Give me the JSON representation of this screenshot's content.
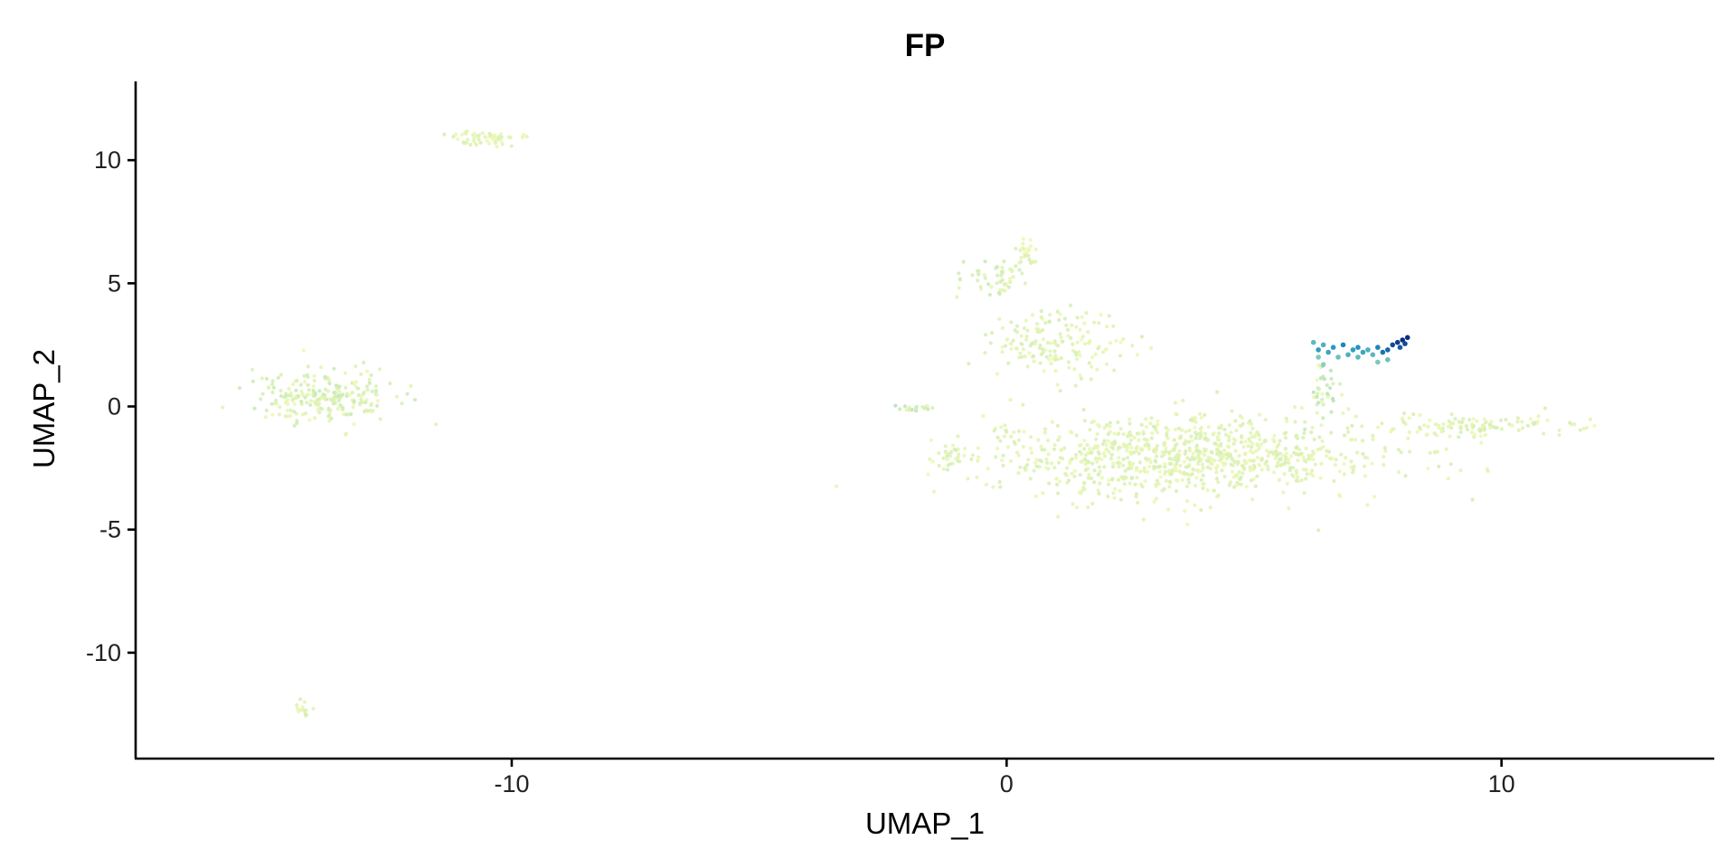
{
  "chart_data": {
    "type": "scatter",
    "title": "FP",
    "xlabel": "UMAP_1",
    "ylabel": "UMAP_2",
    "xlim": [
      -17.6,
      14.3
    ],
    "ylim": [
      -14.3,
      13.2
    ],
    "x_ticks": [
      -10,
      0,
      10
    ],
    "x_tick_labels": [
      "-10",
      "0",
      "10"
    ],
    "y_ticks": [
      -10,
      -5,
      0,
      5,
      10
    ],
    "y_tick_labels": [
      "-10",
      "-5",
      "0",
      "5",
      "10"
    ],
    "grid": false,
    "legend": "none",
    "color_scale": {
      "low": "#edf8b1",
      "mid_low": "#7fcdbb",
      "mid_high": "#1d91c0",
      "high": "#0c2c84",
      "range": [
        0,
        1
      ]
    },
    "clusters": [
      {
        "center": [
          3.5,
          -2.0
        ],
        "spread": [
          3.8,
          1.5
        ],
        "count": 900,
        "expression": 0.02
      },
      {
        "center": [
          1.0,
          2.5
        ],
        "spread": [
          1.2,
          1.2
        ],
        "count": 160,
        "expression": 0.02
      },
      {
        "center": [
          -0.3,
          5.2
        ],
        "spread": [
          0.6,
          0.8
        ],
        "count": 50,
        "expression": 0.03
      },
      {
        "center": [
          0.4,
          6.2
        ],
        "spread": [
          0.2,
          0.6
        ],
        "count": 25,
        "expression": 0.02
      },
      {
        "center": [
          -1.0,
          -2.0
        ],
        "spread": [
          0.4,
          0.4
        ],
        "count": 25,
        "expression": 0.02
      },
      {
        "center": [
          9.5,
          -0.8
        ],
        "spread": [
          1.8,
          0.4
        ],
        "count": 110,
        "expression": 0.02
      },
      {
        "center": [
          -13.8,
          0.4
        ],
        "spread": [
          1.3,
          0.9
        ],
        "count": 230,
        "expression": 0.03
      },
      {
        "center": [
          -10.5,
          10.9
        ],
        "spread": [
          0.7,
          0.3
        ],
        "count": 55,
        "expression": 0.02
      },
      {
        "center": [
          -14.2,
          -12.3
        ],
        "spread": [
          0.2,
          0.3
        ],
        "count": 14,
        "expression": 0.02
      },
      {
        "center": [
          -1.8,
          -0.1
        ],
        "spread": [
          0.6,
          0.15
        ],
        "count": 18,
        "expression": 0.05
      },
      {
        "center": [
          6.4,
          0.6
        ],
        "spread": [
          0.3,
          1.0
        ],
        "count": 35,
        "expression": 0.05
      }
    ],
    "highlight_points": [
      [
        6.2,
        2.6,
        0.45
      ],
      [
        6.3,
        2.3,
        0.6
      ],
      [
        6.4,
        2.5,
        0.5
      ],
      [
        6.5,
        2.2,
        0.55
      ],
      [
        6.6,
        2.4,
        0.62
      ],
      [
        6.7,
        2.0,
        0.4
      ],
      [
        6.8,
        2.5,
        0.7
      ],
      [
        6.9,
        2.1,
        0.5
      ],
      [
        7.0,
        2.3,
        0.6
      ],
      [
        7.1,
        2.4,
        0.65
      ],
      [
        7.2,
        2.2,
        0.55
      ],
      [
        7.3,
        2.3,
        0.5
      ],
      [
        7.4,
        2.1,
        0.45
      ],
      [
        7.5,
        2.4,
        0.7
      ],
      [
        7.6,
        2.2,
        0.75
      ],
      [
        7.7,
        2.3,
        0.8
      ],
      [
        7.8,
        2.5,
        0.9
      ],
      [
        7.9,
        2.6,
        0.95
      ],
      [
        8.0,
        2.7,
        1.0
      ],
      [
        8.1,
        2.8,
        1.0
      ],
      [
        7.95,
        2.4,
        0.85
      ],
      [
        7.7,
        1.9,
        0.4
      ],
      [
        7.5,
        1.8,
        0.35
      ],
      [
        6.4,
        1.7,
        0.3
      ],
      [
        6.3,
        2.0,
        0.35
      ],
      [
        7.1,
        2.0,
        0.45
      ],
      [
        8.05,
        2.55,
        0.9
      ]
    ]
  }
}
